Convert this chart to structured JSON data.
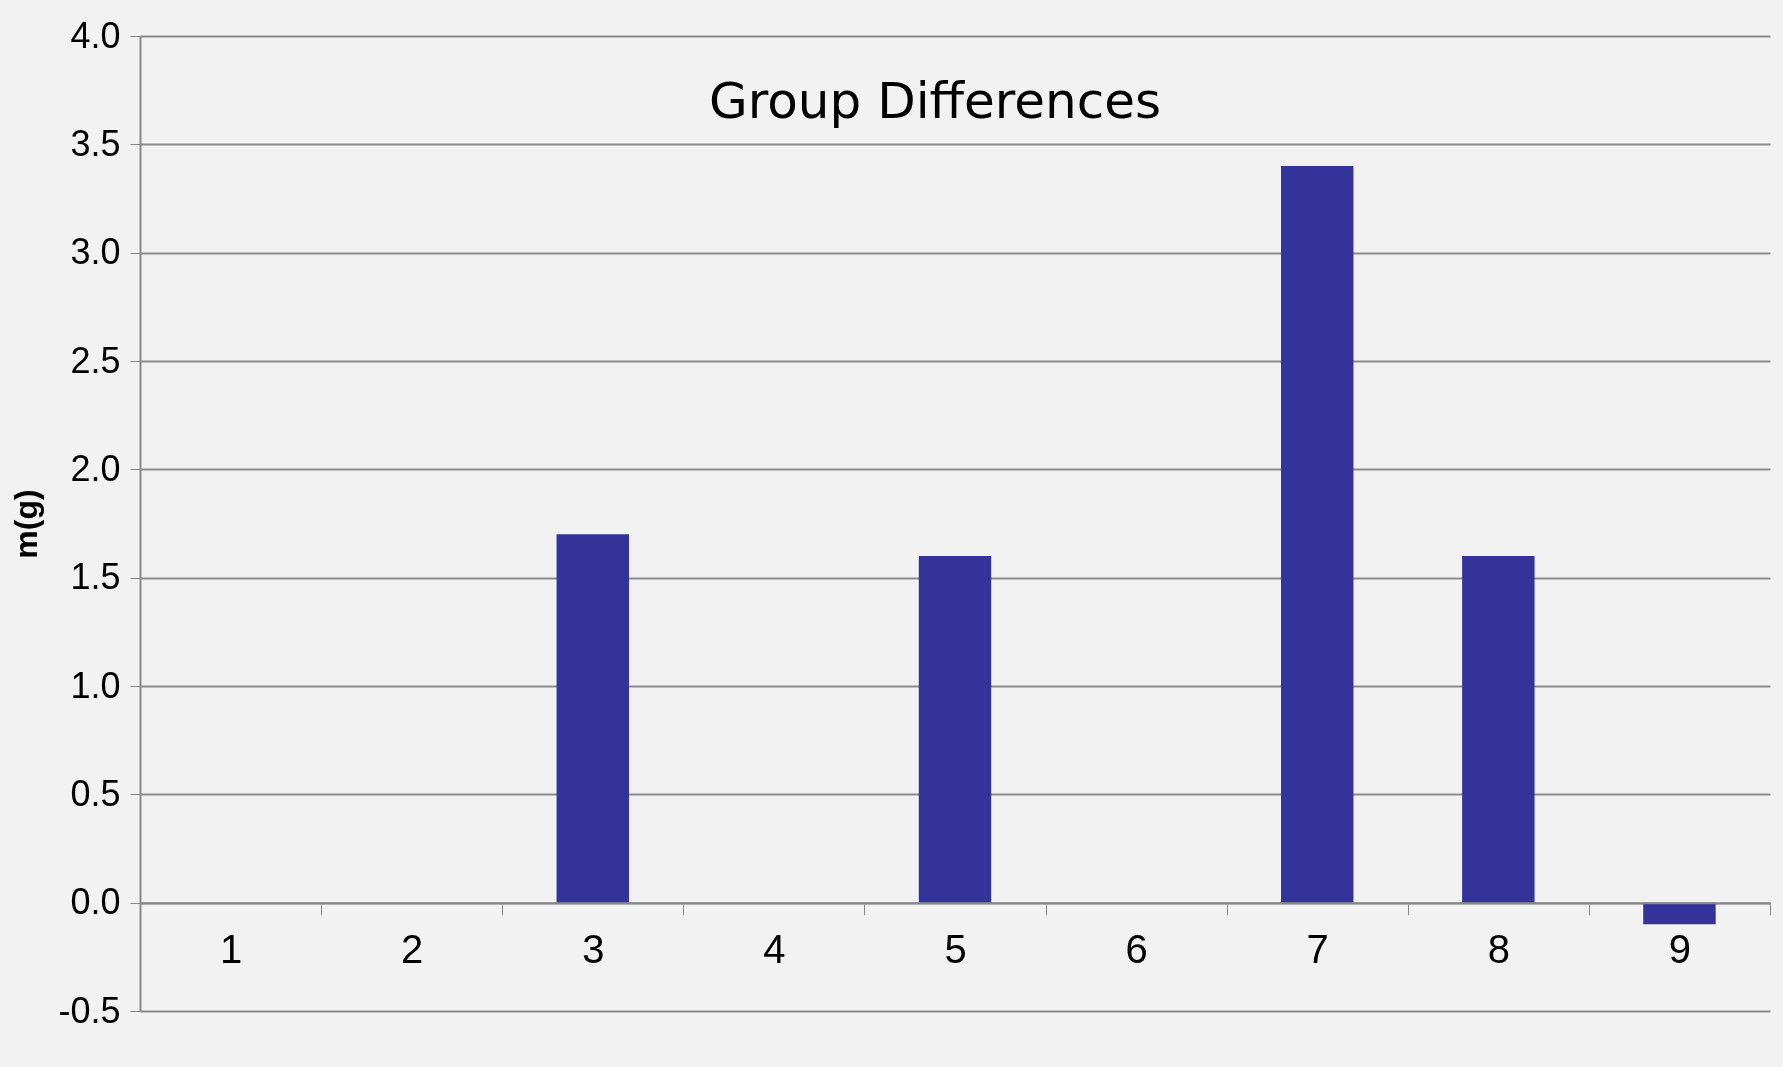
{
  "chart_data": {
    "type": "bar",
    "title": "Group Differences",
    "ylabel": "m(g)",
    "categories": [
      "1",
      "2",
      "3",
      "4",
      "5",
      "6",
      "7",
      "8",
      "9"
    ],
    "values": [
      0,
      0,
      1.7,
      0,
      1.6,
      0,
      3.4,
      1.6,
      -0.1
    ],
    "color": "#333399",
    "ylim": [
      -0.5,
      4.0
    ],
    "yticks": [
      {
        "value": -0.5,
        "label": "-0.5"
      },
      {
        "value": 0,
        "label": "0.0"
      },
      {
        "value": 0.5,
        "label": "0.5"
      },
      {
        "value": 1,
        "label": "1.0"
      },
      {
        "value": 1.5,
        "label": "1.5"
      },
      {
        "value": 2,
        "label": "2.0"
      },
      {
        "value": 2.5,
        "label": "2.5"
      },
      {
        "value": 3,
        "label": "3.0"
      },
      {
        "value": 3.5,
        "label": "3.5"
      },
      {
        "value": 4,
        "label": "4.0"
      }
    ],
    "grid": "y",
    "legend": false
  }
}
